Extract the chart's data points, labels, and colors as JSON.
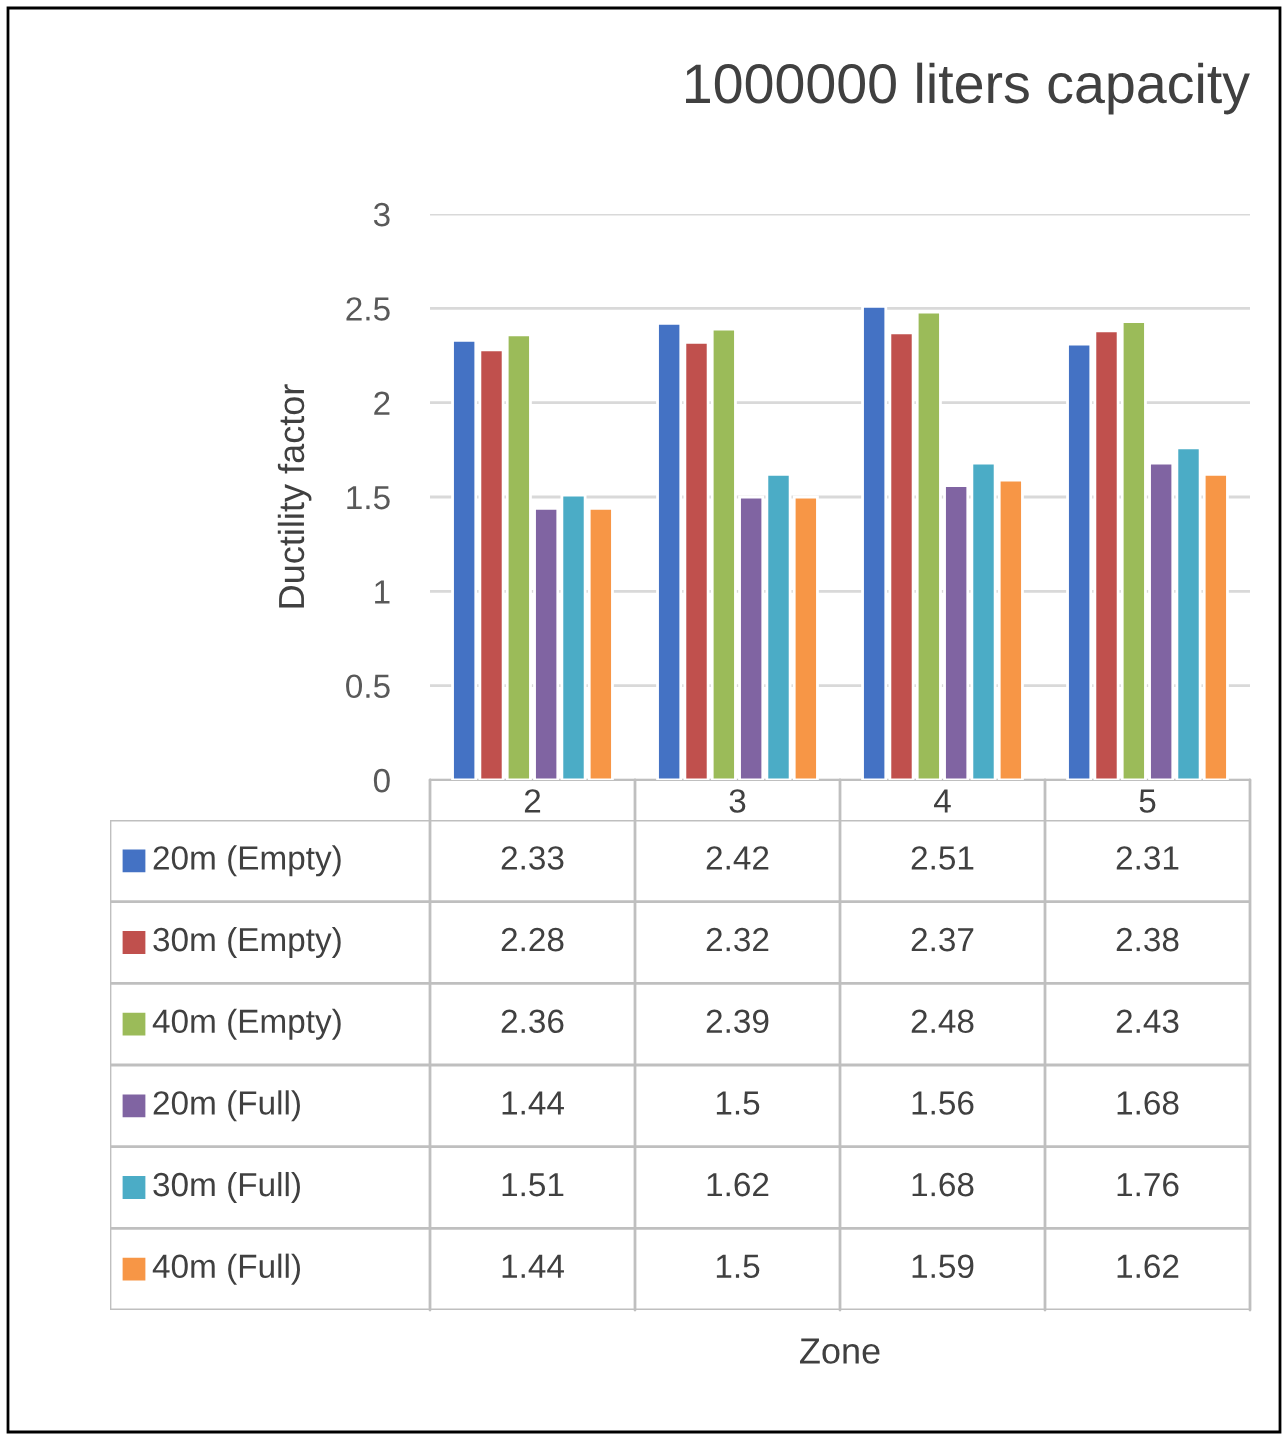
{
  "chart_data": {
    "type": "bar",
    "title": "1000000 liters capacity",
    "annotations": [
      "Zone"
    ],
    "ylabel": "Ductility factor",
    "categories": [
      "2",
      "3",
      "4",
      "5"
    ],
    "series": [
      {
        "name": "20m (Empty)",
        "color": "#4472c4",
        "values": [
          2.33,
          2.42,
          2.51,
          2.31
        ]
      },
      {
        "name": "30m (Empty)",
        "color": "#c0504d",
        "values": [
          2.28,
          2.32,
          2.37,
          2.38
        ]
      },
      {
        "name": "40m (Empty)",
        "color": "#9bbb59",
        "values": [
          2.36,
          2.39,
          2.48,
          2.43
        ]
      },
      {
        "name": "20m (Full)",
        "color": "#8064a2",
        "values": [
          1.44,
          1.5,
          1.56,
          1.68
        ]
      },
      {
        "name": "30m (Full)",
        "color": "#4bacc6",
        "values": [
          1.51,
          1.62,
          1.68,
          1.76
        ]
      },
      {
        "name": "40m (Full)",
        "color": "#f79646",
        "values": [
          1.44,
          1.5,
          1.59,
          1.62
        ]
      }
    ],
    "ylim": [
      0,
      3
    ],
    "yticks": [
      0,
      0.5,
      1,
      1.5,
      2,
      2.5,
      3
    ],
    "grid": "y",
    "legend": "bottom",
    "data_labels": true
  }
}
